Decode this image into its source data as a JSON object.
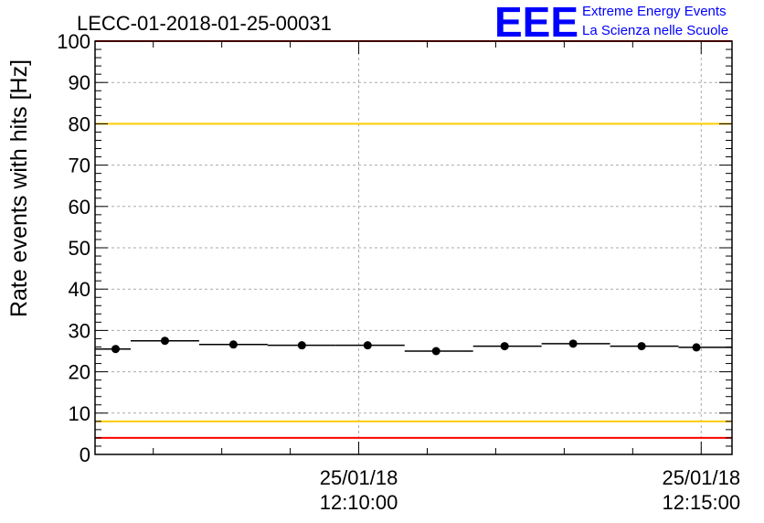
{
  "chart_data": {
    "type": "scatter",
    "title": "LECC-01-2018-01-25-00031",
    "xlabel": "",
    "ylabel": "Rate events with hits [Hz]",
    "ylim": [
      0,
      100
    ],
    "yticks": [
      0,
      10,
      20,
      30,
      40,
      50,
      60,
      70,
      80,
      90,
      100
    ],
    "xticks": [
      {
        "date": "25/01/18",
        "time": "12:10:00",
        "minute": 10
      },
      {
        "date": "25/01/18",
        "time": "12:15:00",
        "minute": 15
      }
    ],
    "xrange_minutes": [
      6.15,
      15.45
    ],
    "grid": true,
    "series": [
      {
        "bins": [
          {
            "start": 6.15,
            "end": 6.67,
            "value": 25.5
          },
          {
            "start": 6.67,
            "end": 7.67,
            "value": 27.5
          },
          {
            "start": 7.67,
            "end": 8.67,
            "value": 26.6
          },
          {
            "start": 8.67,
            "end": 9.67,
            "value": 26.4
          },
          {
            "start": 9.67,
            "end": 10.67,
            "value": 26.4
          },
          {
            "start": 10.67,
            "end": 11.67,
            "value": 25.0
          },
          {
            "start": 11.67,
            "end": 12.67,
            "value": 26.2
          },
          {
            "start": 12.67,
            "end": 13.67,
            "value": 26.8
          },
          {
            "start": 13.67,
            "end": 14.67,
            "value": 26.2
          },
          {
            "start": 14.67,
            "end": 15.45,
            "value": 25.9
          }
        ],
        "points_x": [
          6.45,
          7.17,
          8.17,
          9.17,
          10.13,
          11.13,
          12.13,
          13.13,
          14.13,
          14.93
        ],
        "points_y": [
          25.5,
          27.5,
          26.6,
          26.4,
          26.4,
          25.0,
          26.2,
          26.8,
          26.2,
          25.9
        ]
      }
    ],
    "reference_lines": [
      {
        "value": 100,
        "color": "#ff0000"
      },
      {
        "value": 80,
        "color": "#ffcc00"
      },
      {
        "value": 8,
        "color": "#ffcc00"
      },
      {
        "value": 4,
        "color": "#ff0000"
      }
    ]
  },
  "logo": {
    "mark": "EEE",
    "line1": "Extreme Energy Events",
    "line2": "La Scienza nelle Scuole",
    "color": "#0000ff"
  }
}
